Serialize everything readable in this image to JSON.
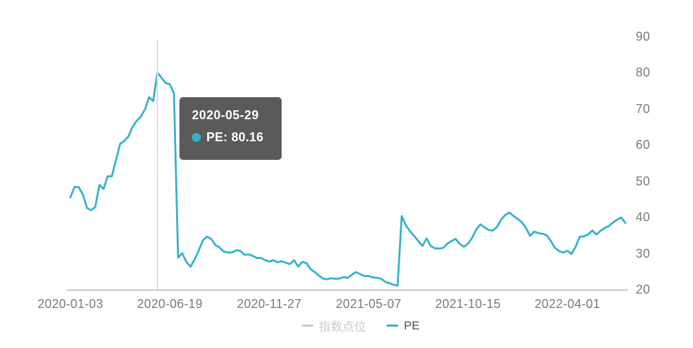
{
  "colors": {
    "line": "#32b2c8",
    "axis_label": "#7a7a7a",
    "axis_line": "#c9c9c9",
    "crosshair": "#dcdcdc",
    "tooltip_bg": "rgba(80,80,80,0.94)",
    "tooltip_text": "#ffffff",
    "legend_inactive": "#c9c9c9",
    "legend_active_text": "#4a4a4a"
  },
  "tooltip": {
    "date": "2020-05-29",
    "value_text": "PE: 80.16"
  },
  "chart_data": {
    "type": "line",
    "title": "",
    "xlabel": "",
    "ylabel": "",
    "ylim": [
      20,
      90
    ],
    "grid": false,
    "legend_position": "bottom",
    "y_ticks": [
      90,
      80,
      70,
      60,
      50,
      40,
      30,
      20
    ],
    "x_ticks": [
      "2020-01-03",
      "2020-06-19",
      "2020-11-27",
      "2021-05-07",
      "2021-10-15",
      "2022-04-01"
    ],
    "x_tick_interval_weeks": 24,
    "highlight": {
      "series": "PE",
      "date": "2020-05-29",
      "value": 80.16,
      "week_index": 21
    },
    "series": [
      {
        "name": "指数点位",
        "visible": false,
        "values": []
      },
      {
        "name": "PE",
        "visible": true,
        "color": "#32b2c8",
        "start_date": "2020-01-03",
        "interval_days": 7,
        "values": [
          45.7,
          48.6,
          48.5,
          46.5,
          42.8,
          42.1,
          43.0,
          49.1,
          48.0,
          51.5,
          51.5,
          56.0,
          60.5,
          61.3,
          62.5,
          65.2,
          66.8,
          68.0,
          70.0,
          73.4,
          72.3,
          80.16,
          78.8,
          77.3,
          77.0,
          74.5,
          29.0,
          30.2,
          27.8,
          26.5,
          28.5,
          31.0,
          33.8,
          34.8,
          34.2,
          32.5,
          31.8,
          30.7,
          30.4,
          30.4,
          31.0,
          30.9,
          29.8,
          29.9,
          29.5,
          28.9,
          28.9,
          28.3,
          27.9,
          28.3,
          27.7,
          28.0,
          27.6,
          27.2,
          28.3,
          26.5,
          27.8,
          27.5,
          25.8,
          25.0,
          24.0,
          23.2,
          23.0,
          23.3,
          23.1,
          23.2,
          23.6,
          23.4,
          24.3,
          25.0,
          24.4,
          23.9,
          23.9,
          23.5,
          23.4,
          23.2,
          22.3,
          21.9,
          21.5,
          21.2,
          40.5,
          37.9,
          36.3,
          35.0,
          33.6,
          32.2,
          34.3,
          32.2,
          31.6,
          31.5,
          31.7,
          32.8,
          33.6,
          34.2,
          32.8,
          32.0,
          32.8,
          34.5,
          36.8,
          38.2,
          37.4,
          36.6,
          36.5,
          37.5,
          39.5,
          40.8,
          41.5,
          40.5,
          39.7,
          38.8,
          37.2,
          35.0,
          36.2,
          35.8,
          35.6,
          35.2,
          33.6,
          31.7,
          30.8,
          30.4,
          30.9,
          30.0,
          32.0,
          34.8,
          34.9,
          35.4,
          36.5,
          35.4,
          36.4,
          37.2,
          37.7,
          38.7,
          39.5,
          40.1,
          38.6
        ]
      }
    ]
  }
}
